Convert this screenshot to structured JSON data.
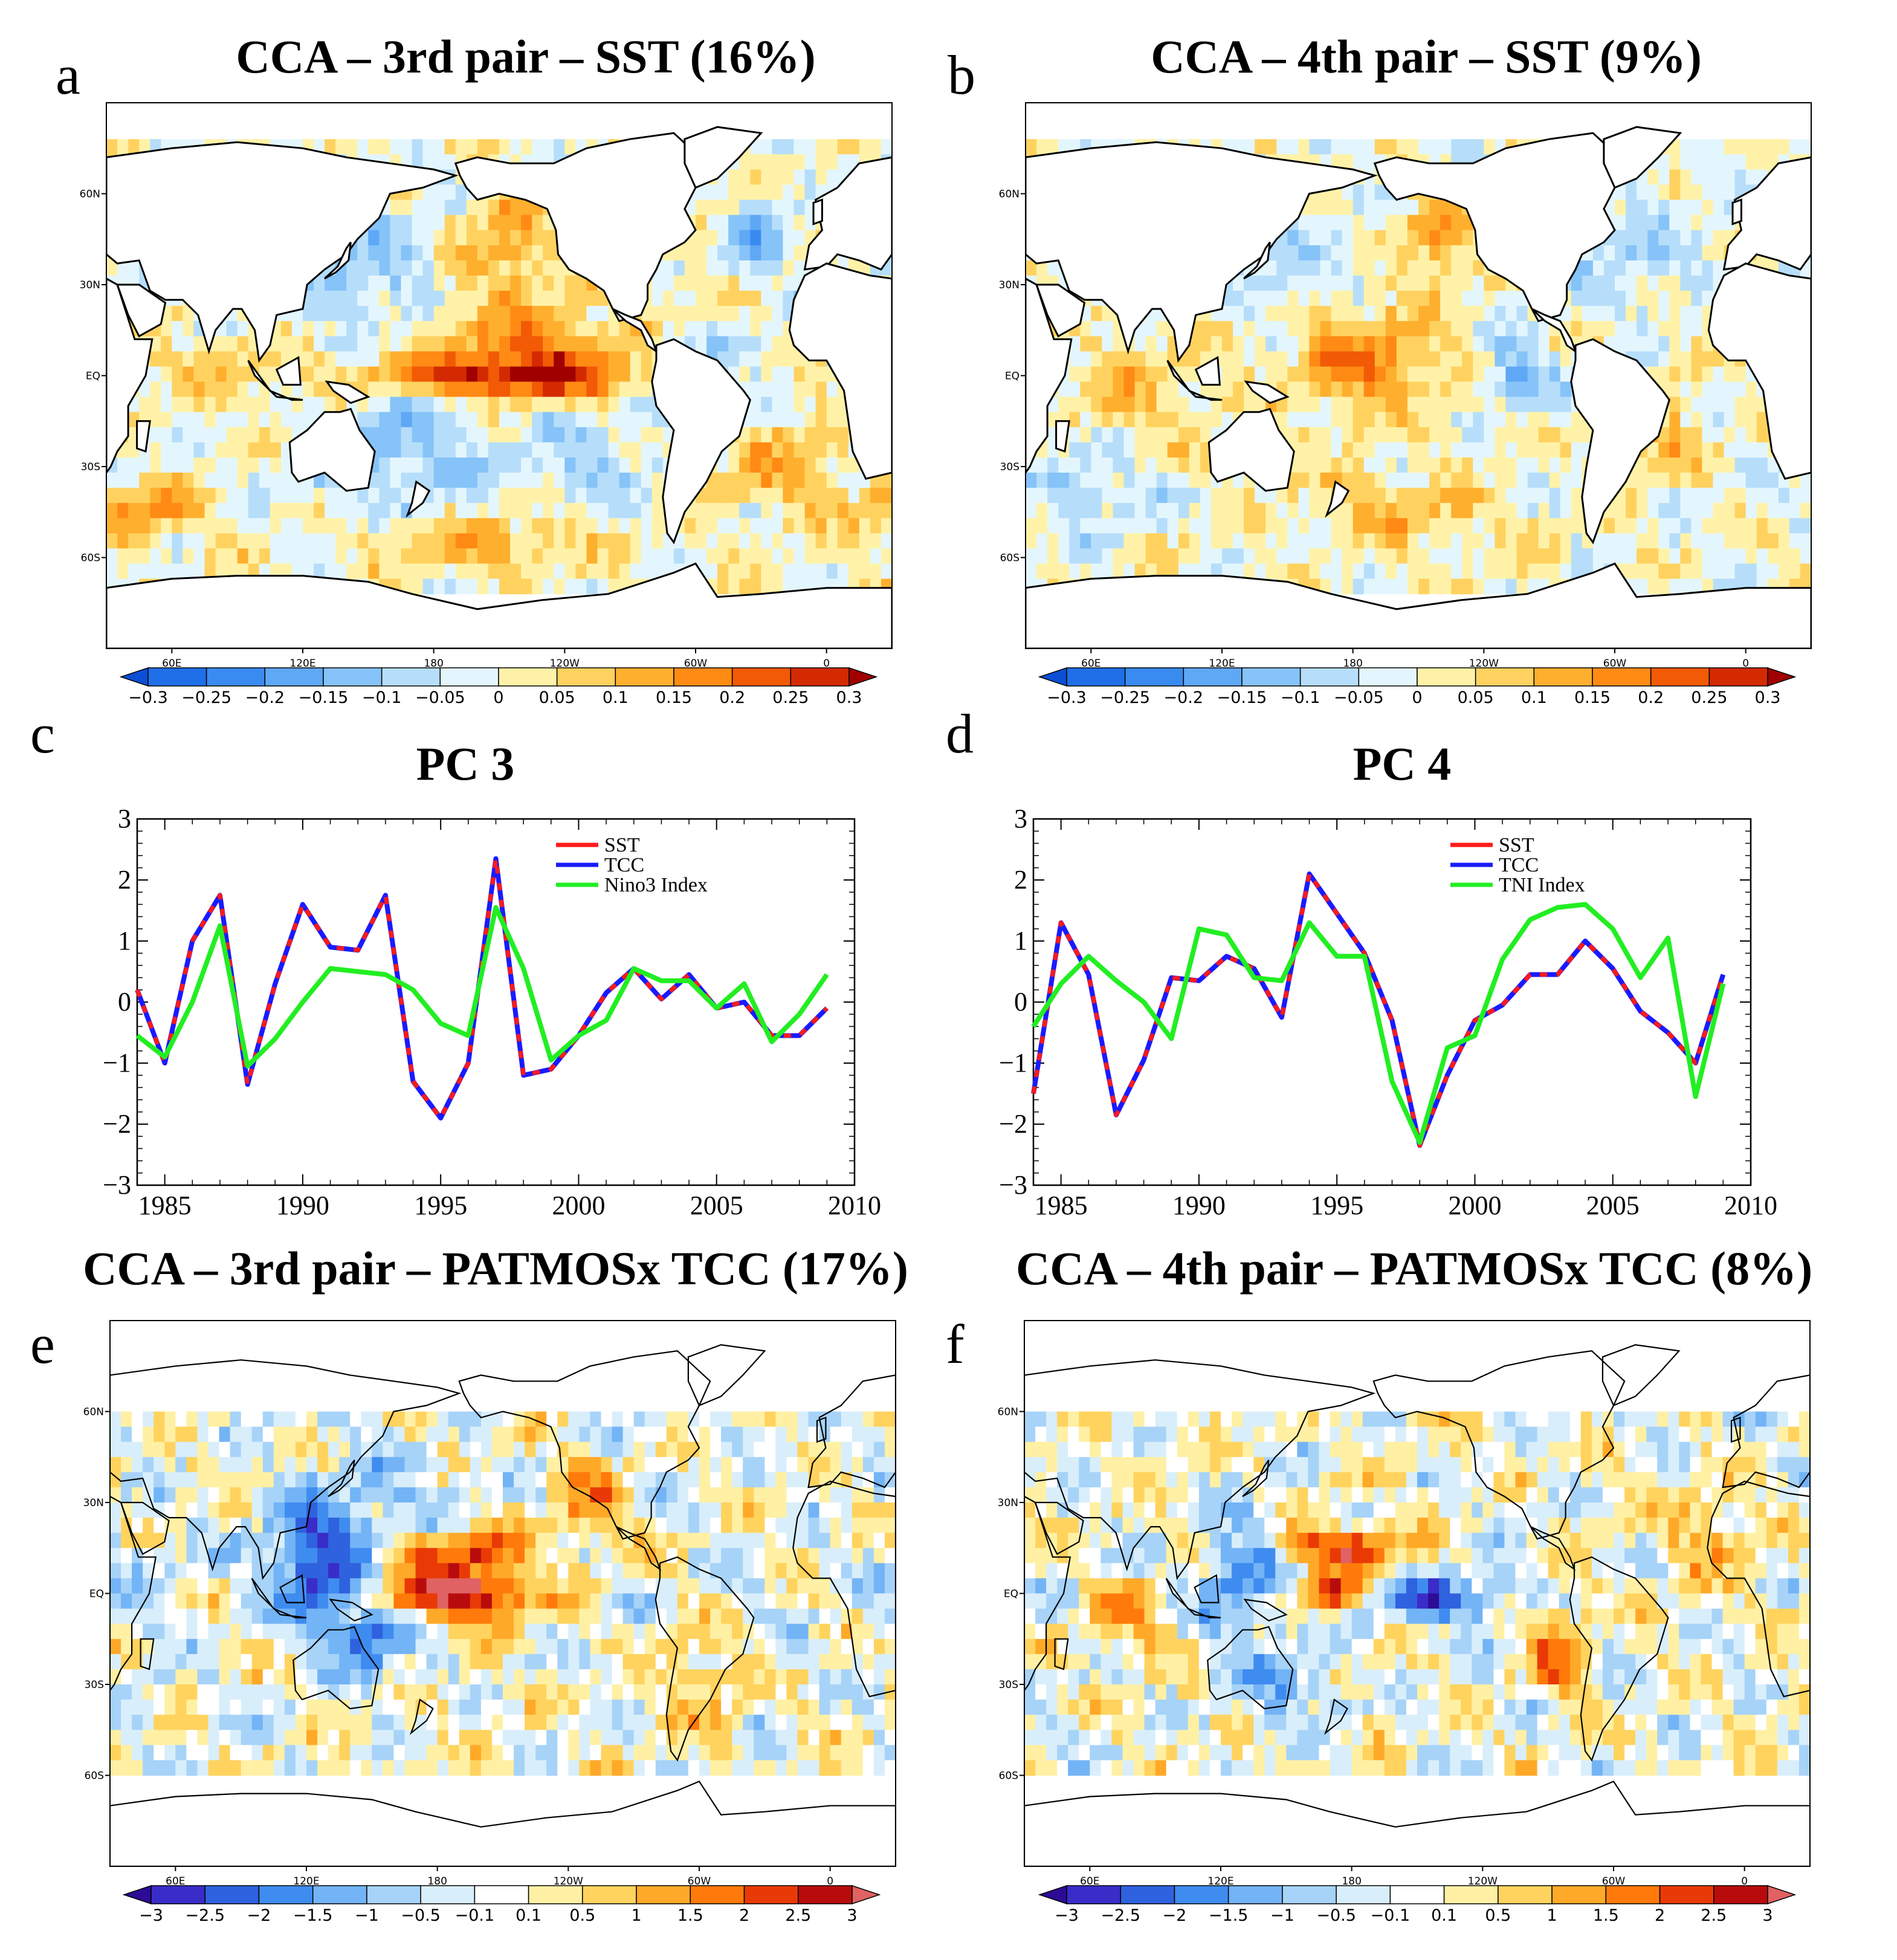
{
  "chart_data": [
    {
      "panel": "a",
      "type": "heatmap",
      "title": "CCA – 3rd pair – SST (16%)",
      "lat_ticks": [
        "60N",
        "30N",
        "EQ",
        "30S",
        "60S"
      ],
      "lon_ticks": [
        "60E",
        "120E",
        "180",
        "120W",
        "60W",
        "0"
      ],
      "colorbar": {
        "ticks": [
          "-0.3",
          "-0.25",
          "-0.2",
          "-0.15",
          "-0.1",
          "-0.05",
          "0",
          "0.05",
          "0.1",
          "0.15",
          "0.2",
          "0.25",
          "0.3"
        ],
        "colors": [
          "#0a4fd6",
          "#1e6fe8",
          "#3a8bf0",
          "#5ea8f5",
          "#86c3f8",
          "#b6defb",
          "#e4f6fd",
          "#fff2a8",
          "#ffd260",
          "#ffaf2e",
          "#ff8a14",
          "#f25a06",
          "#d42a02",
          "#a00000"
        ]
      },
      "features": [
        {
          "lon": 215,
          "lat": 0,
          "sx": 45,
          "sy": 5,
          "value": 0.28
        },
        {
          "lon": 225,
          "lat": 12,
          "sx": 30,
          "sy": 10,
          "value": 0.15
        },
        {
          "lon": 215,
          "lat": 45,
          "sx": 14,
          "sy": 12,
          "value": 0.14
        },
        {
          "lon": 140,
          "lat": 35,
          "sx": 25,
          "sy": 12,
          "value": -0.12
        },
        {
          "lon": 160,
          "lat": -25,
          "sx": 30,
          "sy": 15,
          "value": -0.12
        },
        {
          "lon": 330,
          "lat": 45,
          "sx": 10,
          "sy": 8,
          "value": -0.15
        },
        {
          "lon": 45,
          "lat": -45,
          "sx": 20,
          "sy": 6,
          "value": 0.18
        },
        {
          "lon": 200,
          "lat": -55,
          "sx": 40,
          "sy": 6,
          "value": 0.12
        },
        {
          "lon": 340,
          "lat": -30,
          "sx": 20,
          "sy": 12,
          "value": 0.1
        },
        {
          "lon": 80,
          "lat": 0,
          "sx": 25,
          "sy": 10,
          "value": 0.06
        },
        {
          "lon": 250,
          "lat": -30,
          "sx": 20,
          "sy": 12,
          "value": -0.08
        },
        {
          "lon": 300,
          "lat": 0,
          "sx": 20,
          "sy": 10,
          "value": -0.08
        }
      ]
    },
    {
      "panel": "b",
      "type": "heatmap",
      "title": "CCA – 4th pair – SST (9%)",
      "lat_ticks": [
        "60N",
        "30N",
        "EQ",
        "30S",
        "60S"
      ],
      "lon_ticks": [
        "60E",
        "120E",
        "180",
        "120W",
        "60W",
        "0"
      ],
      "colorbar": {
        "ticks": [
          "-0.3",
          "-0.25",
          "-0.2",
          "-0.15",
          "-0.1",
          "-0.05",
          "0",
          "0.05",
          "0.1",
          "0.15",
          "0.2",
          "0.25",
          "0.3"
        ],
        "colors": [
          "#0a4fd6",
          "#1e6fe8",
          "#3a8bf0",
          "#5ea8f5",
          "#86c3f8",
          "#b6defb",
          "#e4f6fd",
          "#fff2a8",
          "#ffd260",
          "#ffaf2e",
          "#ff8a14",
          "#f25a06",
          "#d42a02",
          "#a00000"
        ]
      },
      "features": [
        {
          "lon": 185,
          "lat": 5,
          "sx": 25,
          "sy": 12,
          "value": 0.18
        },
        {
          "lon": 220,
          "lat": 45,
          "sx": 12,
          "sy": 10,
          "value": 0.16
        },
        {
          "lon": 255,
          "lat": 0,
          "sx": 10,
          "sy": 8,
          "value": -0.16
        },
        {
          "lon": 150,
          "lat": 30,
          "sx": 20,
          "sy": 10,
          "value": -0.08
        },
        {
          "lon": 80,
          "lat": -5,
          "sx": 20,
          "sy": 12,
          "value": 0.1
        },
        {
          "lon": 200,
          "lat": -45,
          "sx": 30,
          "sy": 8,
          "value": 0.1
        },
        {
          "lon": 310,
          "lat": 40,
          "sx": 20,
          "sy": 12,
          "value": -0.08
        },
        {
          "lon": 60,
          "lat": -35,
          "sx": 20,
          "sy": 10,
          "value": -0.08
        },
        {
          "lon": 320,
          "lat": -20,
          "sx": 15,
          "sy": 10,
          "value": 0.1
        }
      ]
    },
    {
      "panel": "c",
      "type": "line",
      "title": "PC 3",
      "x": [
        1984,
        1985,
        1986,
        1987,
        1988,
        1989,
        1990,
        1991,
        1992,
        1993,
        1994,
        1995,
        1996,
        1997,
        1998,
        1999,
        2000,
        2001,
        2002,
        2003,
        2004,
        2005,
        2006,
        2007,
        2008,
        2009
      ],
      "xlim": [
        1984,
        2010
      ],
      "ylim": [
        -3,
        3
      ],
      "x_ticks": [
        "1985",
        "1990",
        "1995",
        "2000",
        "2005",
        "2010"
      ],
      "y_ticks": [
        "3",
        "2",
        "1",
        "0",
        "−1",
        "−2",
        "−3"
      ],
      "series": [
        {
          "name": "SST",
          "color": "#ff1a1a",
          "values": [
            0.2,
            -1.0,
            1.0,
            1.75,
            -1.35,
            0.3,
            1.6,
            0.9,
            0.85,
            1.75,
            -1.3,
            -1.9,
            -1.0,
            2.35,
            -1.2,
            -1.1,
            -0.55,
            0.15,
            0.55,
            0.05,
            0.45,
            -0.1,
            0.0,
            -0.55,
            -0.55,
            -0.1
          ]
        },
        {
          "name": "TCC",
          "color": "#1a1aff",
          "values": [
            0.2,
            -1.0,
            1.0,
            1.75,
            -1.35,
            0.3,
            1.6,
            0.9,
            0.85,
            1.75,
            -1.3,
            -1.9,
            -1.0,
            2.35,
            -1.2,
            -1.1,
            -0.55,
            0.15,
            0.55,
            0.05,
            0.45,
            -0.1,
            0.0,
            -0.55,
            -0.55,
            -0.1
          ]
        },
        {
          "name": "Nino3 Index",
          "color": "#22ee22",
          "values": [
            -0.55,
            -0.9,
            0.0,
            1.25,
            -1.05,
            -0.6,
            0.0,
            0.55,
            0.5,
            0.45,
            0.2,
            -0.35,
            -0.55,
            1.55,
            0.55,
            -0.95,
            -0.55,
            -0.3,
            0.55,
            0.35,
            0.35,
            -0.1,
            0.3,
            -0.65,
            -0.2,
            0.45
          ]
        }
      ]
    },
    {
      "panel": "d",
      "type": "line",
      "title": "PC 4",
      "x": [
        1984,
        1985,
        1986,
        1987,
        1988,
        1989,
        1990,
        1991,
        1992,
        1993,
        1994,
        1995,
        1996,
        1997,
        1998,
        1999,
        2000,
        2001,
        2002,
        2003,
        2004,
        2005,
        2006,
        2007,
        2008,
        2009
      ],
      "xlim": [
        1984,
        2010
      ],
      "ylim": [
        -3,
        3
      ],
      "x_ticks": [
        "1985",
        "1990",
        "1995",
        "2000",
        "2005",
        "2010"
      ],
      "y_ticks": [
        "3",
        "2",
        "1",
        "0",
        "−1",
        "−2",
        "−3"
      ],
      "series": [
        {
          "name": "SST",
          "color": "#ff1a1a",
          "values": [
            -1.5,
            1.3,
            0.45,
            -1.85,
            -0.95,
            0.4,
            0.35,
            0.75,
            0.55,
            -0.25,
            2.1,
            1.45,
            0.8,
            -0.3,
            -2.35,
            -1.2,
            -0.3,
            -0.05,
            0.45,
            0.45,
            1.0,
            0.55,
            -0.15,
            -0.5,
            -1.0,
            0.45
          ]
        },
        {
          "name": "TCC",
          "color": "#1a1aff",
          "values": [
            -1.5,
            1.3,
            0.45,
            -1.85,
            -0.95,
            0.4,
            0.35,
            0.75,
            0.55,
            -0.25,
            2.1,
            1.45,
            0.8,
            -0.3,
            -2.35,
            -1.2,
            -0.3,
            -0.05,
            0.45,
            0.45,
            1.0,
            0.55,
            -0.15,
            -0.5,
            -1.0,
            0.45
          ]
        },
        {
          "name": "TNI Index",
          "color": "#22ee22",
          "values": [
            -0.4,
            0.3,
            0.75,
            0.35,
            0.0,
            -0.6,
            1.2,
            1.1,
            0.4,
            0.35,
            1.3,
            0.75,
            0.75,
            -1.3,
            -2.3,
            -0.75,
            -0.55,
            0.7,
            1.35,
            1.55,
            1.6,
            1.2,
            0.4,
            1.05,
            -1.55,
            0.3
          ]
        }
      ]
    },
    {
      "panel": "e",
      "type": "heatmap",
      "title": "CCA – 3rd pair – PATMOSx TCC (17%)",
      "lat_ticks": [
        "60N",
        "30N",
        "EQ",
        "30S",
        "60S"
      ],
      "lon_ticks": [
        "60E",
        "120E",
        "180",
        "120W",
        "60W",
        "0"
      ],
      "colorbar": {
        "ticks": [
          "-3",
          "-2.5",
          "-2",
          "-1.5",
          "-1",
          "-0.5",
          "-0.1",
          "0.1",
          "0.5",
          "1",
          "1.5",
          "2",
          "2.5",
          "3"
        ],
        "colors": [
          "#2d0b96",
          "#3a2cc8",
          "#2f62de",
          "#3f8cf0",
          "#73b4f6",
          "#a7d3f8",
          "#d9eefb",
          "#ffffff",
          "#fff0a4",
          "#ffd35e",
          "#ffa928",
          "#ff7a0a",
          "#e93a06",
          "#b80c0c",
          "#e06262"
        ]
      },
      "features": [
        {
          "lon": 190,
          "lat": 0,
          "sx": 25,
          "sy": 6,
          "value": 3.2
        },
        {
          "lon": 190,
          "lat": 15,
          "sx": 20,
          "sy": 5,
          "value": 2.2
        },
        {
          "lon": 125,
          "lat": 10,
          "sx": 15,
          "sy": 15,
          "value": -2.7
        },
        {
          "lon": 150,
          "lat": -15,
          "sx": 12,
          "sy": 8,
          "value": -2.0
        },
        {
          "lon": 160,
          "lat": 30,
          "sx": 25,
          "sy": 10,
          "value": -0.8
        },
        {
          "lon": 250,
          "lat": 30,
          "sx": 12,
          "sy": 10,
          "value": 1.2
        },
        {
          "lon": 300,
          "lat": -30,
          "sx": 12,
          "sy": 12,
          "value": 1.0
        },
        {
          "lon": 40,
          "lat": 0,
          "sx": 20,
          "sy": 12,
          "value": -0.6
        }
      ]
    },
    {
      "panel": "f",
      "type": "heatmap",
      "title": "CCA – 4th pair – PATMOSx TCC (8%)",
      "lat_ticks": [
        "60N",
        "30N",
        "EQ",
        "30S",
        "60S"
      ],
      "lon_ticks": [
        "60E",
        "120E",
        "180",
        "120W",
        "60W",
        "0"
      ],
      "colorbar": {
        "ticks": [
          "-3",
          "-2.5",
          "-2",
          "-1.5",
          "-1",
          "-0.5",
          "-0.1",
          "0.1",
          "0.5",
          "1",
          "1.5",
          "2",
          "2.5",
          "3"
        ],
        "colors": [
          "#2d0b96",
          "#3a2cc8",
          "#2f62de",
          "#3f8cf0",
          "#73b4f6",
          "#a7d3f8",
          "#d9eefb",
          "#ffffff",
          "#fff0a4",
          "#ffd35e",
          "#ffa928",
          "#ff7a0a",
          "#e93a06",
          "#b80c0c",
          "#e06262"
        ]
      },
      "features": [
        {
          "lon": 175,
          "lat": 15,
          "sx": 18,
          "sy": 5,
          "value": 2.8
        },
        {
          "lon": 170,
          "lat": 0,
          "sx": 12,
          "sy": 4,
          "value": 2.2
        },
        {
          "lon": 220,
          "lat": -2,
          "sx": 20,
          "sy": 5,
          "value": -2.4
        },
        {
          "lon": 275,
          "lat": -20,
          "sx": 8,
          "sy": 10,
          "value": 1.8
        },
        {
          "lon": 130,
          "lat": 5,
          "sx": 15,
          "sy": 15,
          "value": -1.5
        },
        {
          "lon": 80,
          "lat": -10,
          "sx": 15,
          "sy": 10,
          "value": 1.0
        },
        {
          "lon": 340,
          "lat": 20,
          "sx": 15,
          "sy": 12,
          "value": 1.0
        },
        {
          "lon": 150,
          "lat": -30,
          "sx": 15,
          "sy": 8,
          "value": -1.2
        }
      ]
    }
  ],
  "labels": {
    "a": "a",
    "b": "b",
    "c": "c",
    "d": "d",
    "e": "e",
    "f": "f"
  }
}
